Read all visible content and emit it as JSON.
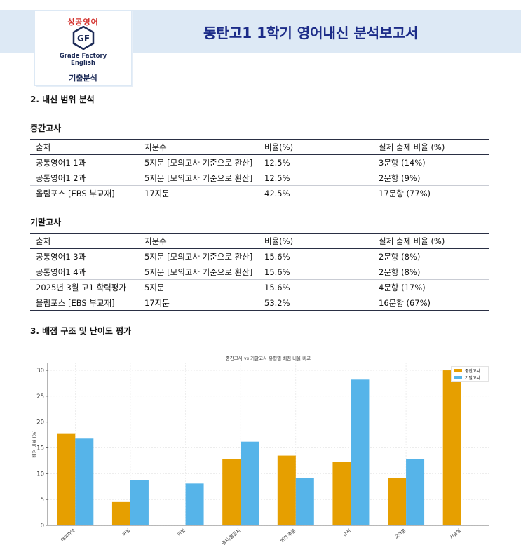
{
  "header": {
    "logo_top": "성공영어",
    "logo_en_line1": "Grade Factory",
    "logo_en_line2": "English",
    "logo_sub": "기출분석",
    "title": "동탄고1 1학기 영어내신 분석보고서"
  },
  "section2": {
    "heading": "2. 내신 범위 분석",
    "midterm": {
      "heading": "중간고사",
      "columns": [
        "출처",
        "지문수",
        "비율(%)",
        "실제 출제 비율 (%)"
      ],
      "rows": [
        [
          "공통영어1 1과",
          "5지문 [모의고사 기준으로 환산]",
          "12.5%",
          "3문항 (14%)"
        ],
        [
          "공통영어1 2과",
          "5지문 [모의고사 기준으로 환산]",
          "12.5%",
          "2문항 (9%)"
        ],
        [
          "올림포스 [EBS 부교재]",
          "17지문",
          "42.5%",
          "17문항 (77%)"
        ]
      ]
    },
    "final": {
      "heading": "기말고사",
      "columns": [
        "출처",
        "지문수",
        "비율(%)",
        "실제 출제 비율 (%)"
      ],
      "rows": [
        [
          "공통영어1 3과",
          "5지문 [모의고사 기준으로 환산]",
          "15.6%",
          "2문항 (8%)"
        ],
        [
          "공통영어1 4과",
          "5지문 [모의고사 기준으로 환산]",
          "15.6%",
          "2문항 (8%)"
        ],
        [
          "2025년 3월 고1 학력평가",
          "5지문",
          "15.6%",
          "4문항 (17%)"
        ],
        [
          "올림포스 [EBS 부교재]",
          "17지문",
          "53.2%",
          "16문항 (67%)"
        ]
      ]
    }
  },
  "section3": {
    "heading": "3. 배점 구조 및 난이도 평가"
  },
  "colors": {
    "midterm": "#e69f00",
    "final": "#56b4e9",
    "title": "#1c2c88"
  },
  "chart_data": {
    "type": "bar",
    "title": "중간고사 vs 기말고사 유형별 배점 비율 비교",
    "xlabel": "",
    "ylabel": "배점 비율 (%)",
    "categories": [
      "대의파악",
      "어법",
      "어휘",
      "일치/불일치",
      "빈칸 추론",
      "순서",
      "요약문",
      "서술형"
    ],
    "series": [
      {
        "name": "중간고사",
        "values": [
          17.7,
          4.5,
          0,
          12.8,
          13.5,
          12.3,
          9.2,
          30.0
        ]
      },
      {
        "name": "기말고사",
        "values": [
          16.8,
          8.7,
          8.1,
          16.2,
          9.2,
          28.2,
          12.8,
          0
        ]
      }
    ],
    "ylim": [
      0,
      31.5
    ],
    "yticks": [
      0,
      5,
      10,
      15,
      20,
      25,
      30
    ],
    "grid": true,
    "legend": "top-right"
  }
}
